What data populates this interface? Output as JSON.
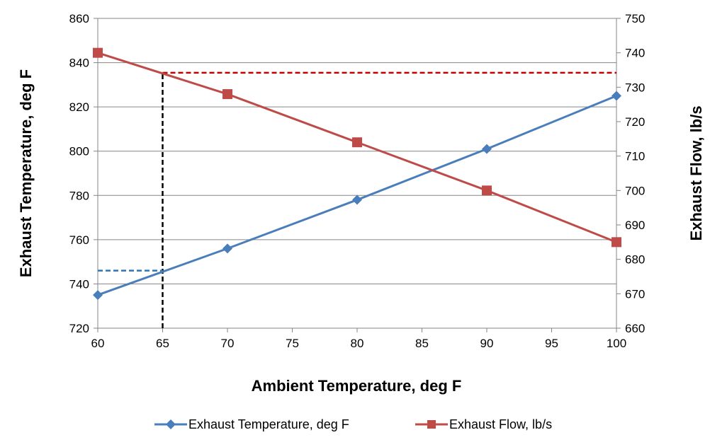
{
  "chart_data": {
    "type": "line",
    "title": "",
    "xlabel": "Ambient Temperature, deg F",
    "ylabel_left": "Exhaust Temperature, deg F",
    "ylabel_right": "Exhaust Flow, lb/s",
    "xlim": [
      60,
      100
    ],
    "x_ticks": [
      60,
      65,
      70,
      75,
      80,
      85,
      90,
      95,
      100
    ],
    "ylim_left": [
      720,
      860
    ],
    "y_ticks_left": [
      720,
      740,
      760,
      780,
      800,
      820,
      840,
      860
    ],
    "ylim_right": [
      660,
      750
    ],
    "y_ticks_right": [
      660,
      670,
      680,
      690,
      700,
      710,
      720,
      730,
      740,
      750
    ],
    "grid": "horizontal",
    "legend_position": "bottom",
    "series": [
      {
        "name": "Exhaust Temperature, deg F",
        "axis": "left",
        "marker": "diamond",
        "color": "#4A7EBB",
        "x": [
          60,
          70,
          80,
          90,
          100
        ],
        "y": [
          735,
          756,
          778,
          801,
          825
        ]
      },
      {
        "name": "Exhaust Flow, lb/s",
        "axis": "right",
        "marker": "square",
        "color": "#BE4B48",
        "x": [
          60,
          70,
          80,
          90,
          100
        ],
        "y": [
          740,
          728,
          714,
          700,
          685
        ]
      }
    ],
    "reference_lines": [
      {
        "kind": "vertical",
        "x": 65,
        "from_y_left": 720,
        "to_y_right": 734.2,
        "color": "#000000",
        "style": "dashed"
      },
      {
        "kind": "horizontal",
        "axis": "left",
        "y": 746,
        "from_x": 60,
        "to_x": 65,
        "color": "#2E75B6",
        "style": "dashed"
      },
      {
        "kind": "horizontal",
        "axis": "right",
        "y": 734.2,
        "from_x": 65,
        "to_x": 100,
        "color": "#C00000",
        "style": "dashed"
      }
    ]
  }
}
